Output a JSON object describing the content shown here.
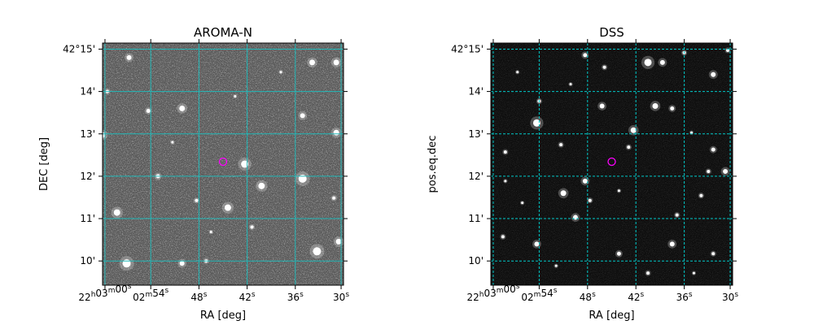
{
  "figure": {
    "panels_count": 2
  },
  "chart_data": [
    {
      "type": "image",
      "title": "AROMA-N",
      "xlabel": "RA [deg]",
      "ylabel": "DEC [deg]",
      "x_tick_labels": [
        "22h03m00s",
        "02m54s",
        "48s",
        "42s",
        "36s",
        "30s"
      ],
      "y_tick_labels": [
        "42°15'",
        "14'",
        "13'",
        "12'",
        "11'",
        "10'"
      ],
      "y_ticks_arcmin": [
        15,
        14,
        13,
        12,
        11,
        10
      ],
      "grid": true,
      "grid_color": "#22b8b8",
      "grid_style": "solid",
      "image_style": "noisy grey background with white stars",
      "marker": {
        "shape": "circle",
        "color": "#ff00ff"
      },
      "stars": [
        {
          "x": 0.11,
          "y": 0.06,
          "r": 3
        },
        {
          "x": 0.87,
          "y": 0.08,
          "r": 3.5
        },
        {
          "x": 0.97,
          "y": 0.08,
          "r": 3.5
        },
        {
          "x": 0.02,
          "y": 0.2,
          "r": 2
        },
        {
          "x": 0.19,
          "y": 0.28,
          "r": 2.5
        },
        {
          "x": 0.33,
          "y": 0.27,
          "r": 3.5
        },
        {
          "x": 0.83,
          "y": 0.3,
          "r": 3
        },
        {
          "x": 0.0,
          "y": 0.38,
          "r": 3.5
        },
        {
          "x": 0.97,
          "y": 0.37,
          "r": 3.5
        },
        {
          "x": 0.59,
          "y": 0.5,
          "r": 4.5
        },
        {
          "x": 0.23,
          "y": 0.55,
          "r": 2.5
        },
        {
          "x": 0.83,
          "y": 0.56,
          "r": 5
        },
        {
          "x": 0.66,
          "y": 0.59,
          "r": 4
        },
        {
          "x": 0.39,
          "y": 0.65,
          "r": 2
        },
        {
          "x": 0.96,
          "y": 0.64,
          "r": 2
        },
        {
          "x": 0.52,
          "y": 0.68,
          "r": 4
        },
        {
          "x": 0.06,
          "y": 0.7,
          "r": 4
        },
        {
          "x": 0.62,
          "y": 0.76,
          "r": 2
        },
        {
          "x": 0.98,
          "y": 0.82,
          "r": 3.5
        },
        {
          "x": 0.89,
          "y": 0.86,
          "r": 5
        },
        {
          "x": 0.1,
          "y": 0.91,
          "r": 5
        },
        {
          "x": 0.33,
          "y": 0.91,
          "r": 3
        },
        {
          "x": 0.43,
          "y": 0.9,
          "r": 2
        },
        {
          "x": 0.29,
          "y": 0.41,
          "r": 1.5
        },
        {
          "x": 0.74,
          "y": 0.12,
          "r": 1.5
        },
        {
          "x": 0.55,
          "y": 0.22,
          "r": 1.5
        },
        {
          "x": 0.45,
          "y": 0.78,
          "r": 1.5
        }
      ]
    },
    {
      "type": "image",
      "title": "DSS",
      "xlabel": "RA [deg]",
      "ylabel": "pos.eq.dec",
      "x_tick_labels": [
        "22h03m00s",
        "02m54s",
        "48s",
        "42s",
        "36s",
        "30s"
      ],
      "y_tick_labels": [
        "42°15'",
        "14'",
        "13'",
        "12'",
        "11'",
        "10'"
      ],
      "y_ticks_arcmin": [
        15,
        14,
        13,
        12,
        11,
        10
      ],
      "grid": true,
      "grid_color": "#00c8c8",
      "grid_style": "dashed",
      "image_style": "dark background with many stars",
      "marker": {
        "shape": "circle",
        "color": "#ff00ff"
      },
      "stars": [
        {
          "x": 0.65,
          "y": 0.08,
          "r": 4.5
        },
        {
          "x": 0.71,
          "y": 0.08,
          "r": 3
        },
        {
          "x": 0.39,
          "y": 0.05,
          "r": 2.5
        },
        {
          "x": 0.92,
          "y": 0.13,
          "r": 3
        },
        {
          "x": 0.47,
          "y": 0.1,
          "r": 2
        },
        {
          "x": 0.8,
          "y": 0.04,
          "r": 2
        },
        {
          "x": 0.2,
          "y": 0.24,
          "r": 2
        },
        {
          "x": 0.46,
          "y": 0.26,
          "r": 3
        },
        {
          "x": 0.68,
          "y": 0.26,
          "r": 3.5
        },
        {
          "x": 0.75,
          "y": 0.27,
          "r": 2.5
        },
        {
          "x": 0.19,
          "y": 0.33,
          "r": 4.5
        },
        {
          "x": 0.59,
          "y": 0.36,
          "r": 3.5
        },
        {
          "x": 0.06,
          "y": 0.45,
          "r": 2
        },
        {
          "x": 0.57,
          "y": 0.43,
          "r": 2
        },
        {
          "x": 0.29,
          "y": 0.42,
          "r": 2
        },
        {
          "x": 0.92,
          "y": 0.44,
          "r": 2.5
        },
        {
          "x": 0.9,
          "y": 0.53,
          "r": 2
        },
        {
          "x": 0.97,
          "y": 0.53,
          "r": 3
        },
        {
          "x": 0.39,
          "y": 0.57,
          "r": 3
        },
        {
          "x": 0.3,
          "y": 0.62,
          "r": 3.5
        },
        {
          "x": 0.41,
          "y": 0.65,
          "r": 2
        },
        {
          "x": 0.53,
          "y": 0.61,
          "r": 1.5
        },
        {
          "x": 0.06,
          "y": 0.57,
          "r": 1.5
        },
        {
          "x": 0.35,
          "y": 0.72,
          "r": 3
        },
        {
          "x": 0.77,
          "y": 0.71,
          "r": 2
        },
        {
          "x": 0.87,
          "y": 0.63,
          "r": 2
        },
        {
          "x": 0.19,
          "y": 0.83,
          "r": 3
        },
        {
          "x": 0.75,
          "y": 0.83,
          "r": 3
        },
        {
          "x": 0.05,
          "y": 0.8,
          "r": 2
        },
        {
          "x": 0.53,
          "y": 0.87,
          "r": 2.5
        },
        {
          "x": 0.92,
          "y": 0.87,
          "r": 2
        },
        {
          "x": 0.65,
          "y": 0.95,
          "r": 2
        },
        {
          "x": 0.27,
          "y": 0.92,
          "r": 1.5
        },
        {
          "x": 0.84,
          "y": 0.95,
          "r": 1.5
        },
        {
          "x": 0.13,
          "y": 0.66,
          "r": 1.5
        },
        {
          "x": 0.98,
          "y": 0.03,
          "r": 2
        },
        {
          "x": 0.33,
          "y": 0.17,
          "r": 1.5
        },
        {
          "x": 0.11,
          "y": 0.12,
          "r": 1.5
        },
        {
          "x": 0.83,
          "y": 0.37,
          "r": 1.5
        }
      ]
    }
  ]
}
